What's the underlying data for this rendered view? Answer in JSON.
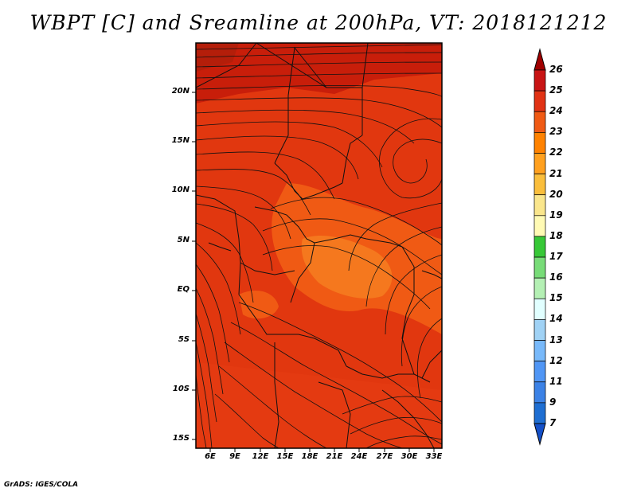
{
  "title": "WBPT [C] and Sreamline at 200hPa, VT: 2018121212",
  "credit": "GrADS: IGES/COLA",
  "axes": {
    "lat_labels": [
      "20N",
      "15N",
      "10N",
      "5N",
      "EQ",
      "5S",
      "10S",
      "15S"
    ],
    "lon_labels": [
      "6E",
      "9E",
      "12E",
      "15E",
      "18E",
      "21E",
      "24E",
      "27E",
      "30E",
      "33E"
    ]
  },
  "colorbar": {
    "labels": [
      "26",
      "25",
      "24",
      "23",
      "22",
      "21",
      "20",
      "19",
      "18",
      "17",
      "16",
      "15",
      "14",
      "13",
      "12",
      "11",
      "9",
      "7"
    ],
    "colors": [
      "#a00000",
      "#c81414",
      "#e13214",
      "#f05a14",
      "#ff8200",
      "#ffa01e",
      "#fabe3c",
      "#fae68c",
      "#fffab4",
      "#37c837",
      "#78dc78",
      "#b4f0b4",
      "#e1ffff",
      "#a0d2f5",
      "#78b9fa",
      "#5096f5",
      "#3c82e6",
      "#1e6ed2",
      "#1450c8"
    ]
  },
  "colors": {
    "field_main": "#e1370f",
    "field_dark": "#c81e0a",
    "field_light": "#f05a14",
    "field_lighter": "#f5781e"
  }
}
